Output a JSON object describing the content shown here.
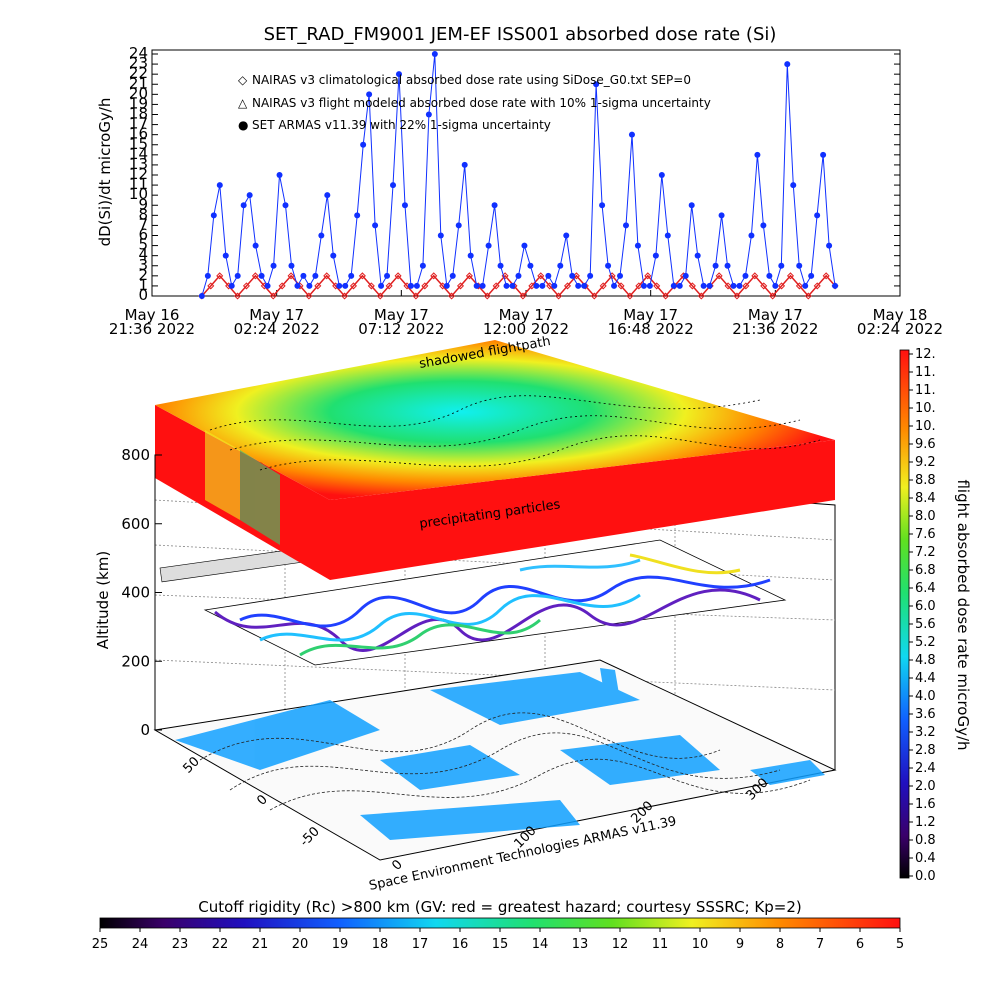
{
  "chart_data": [
    {
      "type": "line",
      "title": "SET_RAD_FM9001  JEM-EF ISS001 absorbed dose rate (Si)",
      "ylabel": "dD(Si)/dt microGy/h",
      "ylim": [
        0,
        24
      ],
      "y_ticks": [
        "0",
        "1",
        "2",
        "3",
        "4",
        "5",
        "6",
        "7",
        "8",
        "9",
        "10",
        "11",
        "12",
        "13",
        "14",
        "15",
        "16",
        "17",
        "18",
        "19",
        "20",
        "21",
        "22",
        "23",
        "24"
      ],
      "x_ticks": [
        {
          "date": "May 16",
          "time": "21:36 2022"
        },
        {
          "date": "May 17",
          "time": "02:24 2022"
        },
        {
          "date": "May 17",
          "time": "07:12 2022"
        },
        {
          "date": "May 17",
          "time": "12:00 2022"
        },
        {
          "date": "May 17",
          "time": "16:48 2022"
        },
        {
          "date": "May 17",
          "time": "21:36 2022"
        },
        {
          "date": "May 18",
          "time": "02:24 2022"
        }
      ],
      "legend": [
        {
          "marker": "◇",
          "color": "#e02020",
          "label": "NAIRAS v3 climatological absorbed dose rate using SiDose_G0.txt SEP=0"
        },
        {
          "marker": "△",
          "color": "#000000",
          "label": "NAIRAS v3 flight modeled absorbed dose rate with 10% 1-sigma uncertainty"
        },
        {
          "marker": "●",
          "color": "#1030ff",
          "label": "SET ARMAS v11.39 with 22% 1-sigma uncertainty"
        }
      ],
      "series": [
        {
          "name": "SET ARMAS v11.39 with 22% 1-sigma uncertainty",
          "color": "#1030ff",
          "x_hours": [
            0.0,
            0.23,
            0.46,
            0.69,
            0.92,
            1.15,
            1.38,
            1.61,
            1.84,
            2.07,
            2.3,
            2.53,
            2.76,
            2.99,
            3.22,
            3.45,
            3.68,
            3.91,
            4.14,
            4.37,
            4.6,
            4.83,
            5.06,
            5.29,
            5.52,
            5.75,
            5.98,
            6.21,
            6.44,
            6.67,
            6.9,
            7.13,
            7.36,
            7.59,
            7.82,
            8.05,
            8.28,
            8.51,
            8.74,
            8.97,
            9.2,
            9.43,
            9.66,
            9.89,
            10.12,
            10.35,
            10.58,
            10.81,
            11.04,
            11.27,
            11.5,
            11.73,
            11.96,
            12.19,
            12.42,
            12.65,
            12.88,
            13.11,
            13.34,
            13.57,
            13.8,
            14.03,
            14.26,
            14.49,
            14.72,
            14.95,
            15.18,
            15.41,
            15.64,
            15.87,
            16.1,
            16.33,
            16.56,
            16.79,
            17.02,
            17.25,
            17.48,
            17.71,
            17.94,
            18.17,
            18.4,
            18.63,
            18.86,
            19.09,
            19.32,
            19.55,
            19.78,
            20.01,
            20.24,
            20.47,
            20.7,
            20.93,
            21.16,
            21.39,
            21.62,
            21.85,
            22.08,
            22.31,
            22.54,
            22.77,
            23.0,
            23.23,
            23.46,
            23.69,
            23.92,
            24.15,
            24.38
          ],
          "values": [
            0,
            2,
            8,
            11,
            4,
            1,
            2,
            9,
            10,
            5,
            2,
            1,
            3,
            12,
            9,
            3,
            1,
            2,
            1,
            2,
            6,
            10,
            4,
            1,
            1,
            2,
            8,
            15,
            20,
            7,
            1,
            2,
            11,
            22,
            9,
            1,
            1,
            3,
            18,
            24,
            6,
            1,
            2,
            7,
            13,
            4,
            1,
            1,
            5,
            9,
            3,
            1,
            1,
            2,
            5,
            3,
            1,
            1,
            2,
            1,
            3,
            6,
            2,
            1,
            1,
            2,
            21,
            9,
            3,
            1,
            2,
            7,
            16,
            5,
            1,
            1,
            4,
            12,
            6,
            1,
            1,
            2,
            9,
            4,
            1,
            1,
            3,
            8,
            3,
            1,
            1,
            2,
            6,
            14,
            7,
            2,
            1,
            3,
            23,
            11,
            3,
            1,
            2,
            8,
            14,
            5,
            1
          ],
          "x_start_tick_index": 0.4
        },
        {
          "name": "NAIRAS v3 climatological absorbed dose rate using SiDose_G0.txt SEP=0",
          "color": "#e02020",
          "values": [
            0,
            1,
            2,
            1,
            0,
            1,
            2,
            1,
            0,
            1,
            2,
            1,
            0,
            1,
            2,
            1,
            0,
            1,
            2,
            1,
            0,
            1,
            2,
            1,
            0,
            1,
            2,
            1,
            0,
            1,
            2,
            1,
            0,
            1,
            2,
            1,
            0,
            1,
            2,
            1,
            0,
            1,
            2,
            1,
            0,
            1,
            2,
            1,
            0,
            1,
            2,
            1,
            0,
            1,
            2,
            1,
            0,
            1,
            2,
            1,
            0,
            1,
            2,
            1,
            0,
            1,
            2,
            1,
            0,
            1,
            2,
            1
          ]
        }
      ]
    },
    {
      "type": "heatmap",
      "ylabel": "Altitude (km)",
      "z_ticks": [
        "0",
        "200",
        "400",
        "600",
        "800"
      ],
      "lat_ticks": [
        "-50",
        "0",
        "50"
      ],
      "lon_ticks": [
        "0",
        "100",
        "200",
        "300"
      ],
      "annotations": [
        "shadowed flightpath",
        "precipitating particles"
      ],
      "credit": "Space Environment Technologies ARMAS v11.39"
    },
    {
      "type": "heatmap",
      "title": "flight absorbed dose rate microGy/h",
      "colorbar_ticks": [
        "12.",
        "11.",
        "11.",
        "10.",
        "10.",
        "9.6",
        "9.2",
        "8.8",
        "8.4",
        "8.0",
        "7.6",
        "7.2",
        "6.8",
        "6.4",
        "6.0",
        "5.6",
        "5.2",
        "4.8",
        "4.4",
        "4.0",
        "3.6",
        "3.2",
        "2.8",
        "2.4",
        "2.0",
        "1.6",
        "1.2",
        "0.8",
        "0.4",
        "0.0"
      ]
    },
    {
      "type": "heatmap",
      "title": "Cutoff rigidity (Rc) >800 km (GV: red = greatest hazard; courtesy SSSRC; Kp=2)",
      "colorbar_ticks": [
        "25",
        "24",
        "23",
        "22",
        "21",
        "20",
        "19",
        "18",
        "17",
        "16",
        "15",
        "14",
        "13",
        "12",
        "11",
        "10",
        "9",
        "8",
        "7",
        "6",
        "5"
      ]
    }
  ]
}
